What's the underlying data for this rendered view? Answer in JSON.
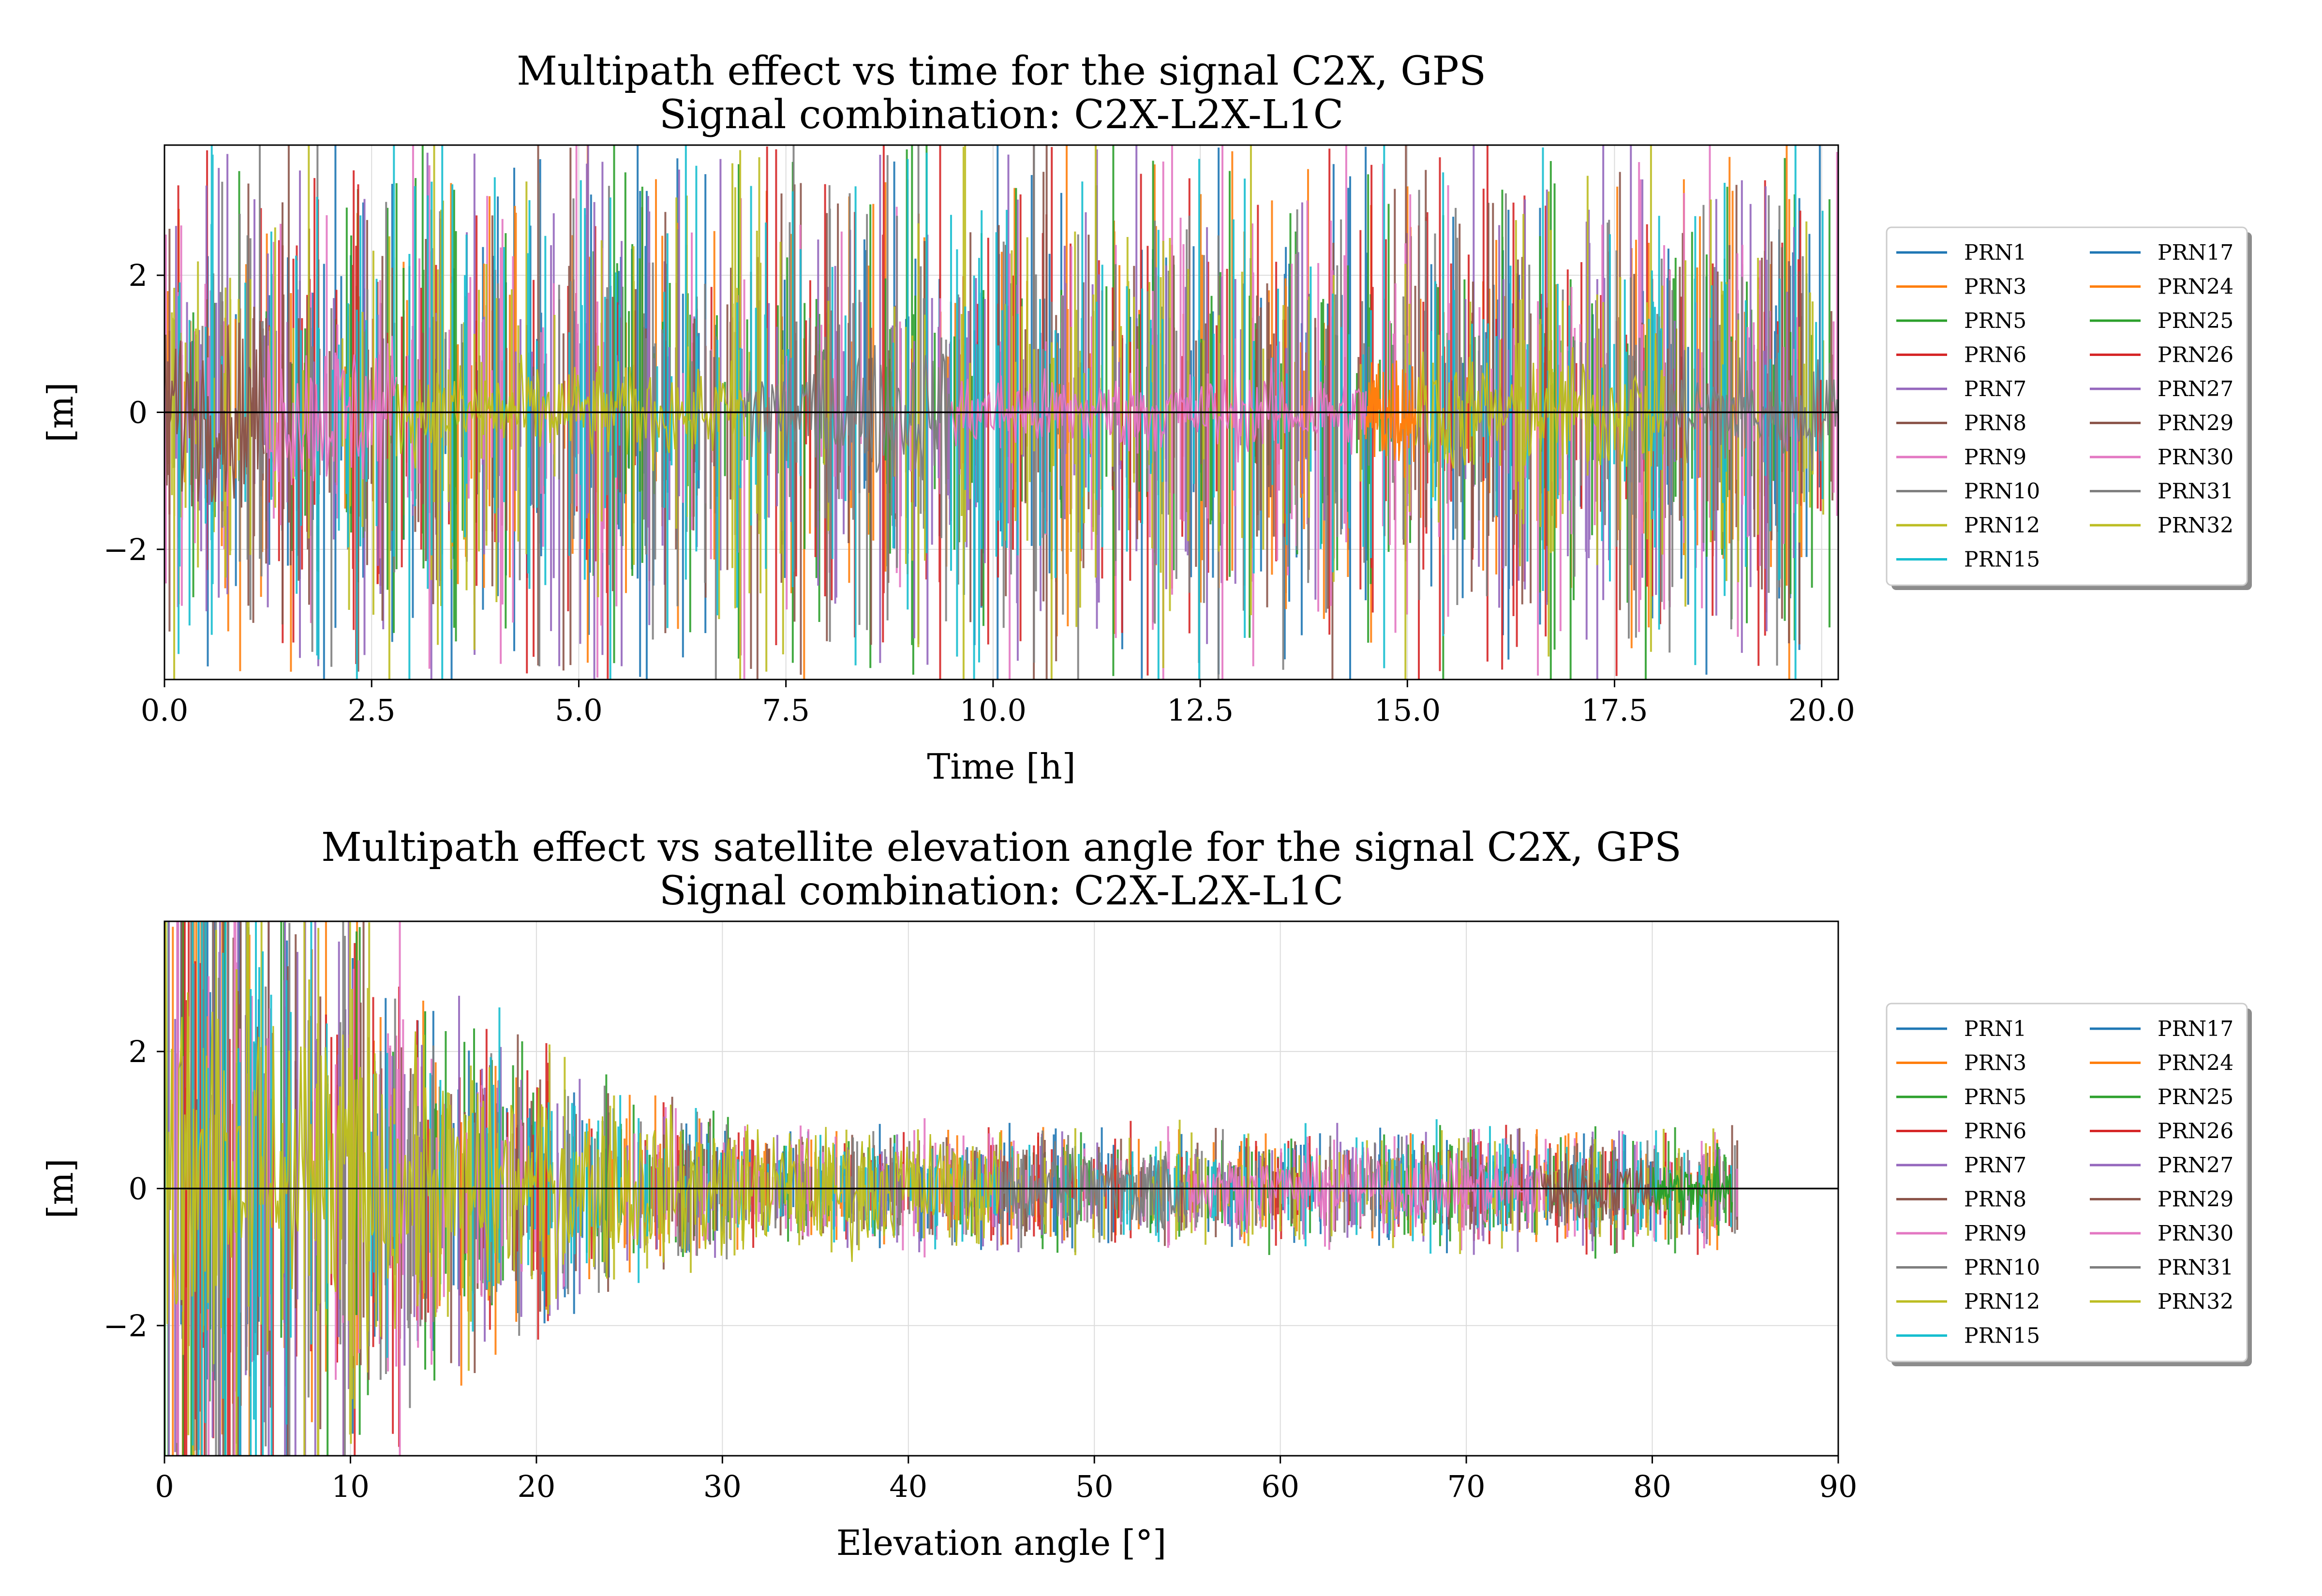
{
  "chart_data": [
    {
      "type": "line",
      "title": "Multipath effect vs time for the signal C2X, GPS",
      "subtitle": "Signal combination: C2X-L2X-L1C",
      "xlabel": "Time [h]",
      "ylabel": "[m]",
      "xlim": [
        0.0,
        20.2
      ],
      "ylim": [
        -3.9,
        3.9
      ],
      "xticks": [
        "0.0",
        "2.5",
        "5.0",
        "7.5",
        "10.0",
        "12.5",
        "15.0",
        "17.5",
        "20.0"
      ],
      "xtick_values": [
        0,
        2.5,
        5,
        7.5,
        10,
        12.5,
        15,
        17.5,
        20
      ],
      "yticks": [
        "−2",
        "0",
        "2"
      ],
      "ytick_values": [
        -2,
        0,
        2
      ],
      "grid": true,
      "zero_line": true,
      "legend_position": "right",
      "legend_columns": 2,
      "legend": [
        "PRN1",
        "PRN3",
        "PRN5",
        "PRN6",
        "PRN7",
        "PRN8",
        "PRN9",
        "PRN10",
        "PRN12",
        "PRN15",
        "PRN17",
        "PRN24",
        "PRN25",
        "PRN26",
        "PRN27",
        "PRN29",
        "PRN30",
        "PRN31",
        "PRN32"
      ],
      "colors": [
        "#1f77b4",
        "#ff7f0e",
        "#2ca02c",
        "#d62728",
        "#9467bd",
        "#8c564b",
        "#e377c2",
        "#7f7f7f",
        "#bcbd22",
        "#17becf",
        "#1f77b4",
        "#ff7f0e",
        "#2ca02c",
        "#d62728",
        "#9467bd",
        "#8c564b",
        "#e377c2",
        "#7f7f7f",
        "#bcbd22"
      ],
      "series": [
        {
          "name": "PRN8",
          "x_range": [
            0.0,
            1.2
          ],
          "amplitude": 1.3
        },
        {
          "name": "PRN9",
          "x_range": [
            1.2,
            2.8
          ],
          "amplitude": 1.2
        },
        {
          "name": "PRN12",
          "x_range": [
            2.8,
            7.0
          ],
          "amplitude": 0.7
        },
        {
          "name": "PRN10",
          "x_range": [
            7.0,
            9.5
          ],
          "amplitude": 1.0
        },
        {
          "name": "PRN30",
          "x_range": [
            9.5,
            14.5
          ],
          "amplitude": 0.6
        },
        {
          "name": "PRN24",
          "x_range": [
            14.5,
            15.1
          ],
          "amplitude": 0.9
        },
        {
          "name": "PRN32",
          "x_range": [
            15.1,
            18.1
          ],
          "amplitude": 0.9
        },
        {
          "name": "PRN31",
          "x_range": [
            18.1,
            20.2
          ],
          "amplitude": 0.8
        }
      ]
    },
    {
      "type": "line",
      "title": "Multipath effect vs satellite elevation angle for the signal C2X, GPS",
      "subtitle": "Signal combination: C2X-L2X-L1C",
      "xlabel": "Elevation angle [°]",
      "ylabel": "[m]",
      "xlim": [
        0,
        90
      ],
      "ylim": [
        -3.9,
        3.9
      ],
      "xticks": [
        "0",
        "10",
        "20",
        "30",
        "40",
        "50",
        "60",
        "70",
        "80",
        "90"
      ],
      "xtick_values": [
        0,
        10,
        20,
        30,
        40,
        50,
        60,
        70,
        80,
        90
      ],
      "yticks": [
        "−2",
        "0",
        "2"
      ],
      "ytick_values": [
        -2,
        0,
        2
      ],
      "grid": true,
      "zero_line": true,
      "legend_position": "right",
      "legend_columns": 2,
      "legend": [
        "PRN1",
        "PRN3",
        "PRN5",
        "PRN6",
        "PRN7",
        "PRN8",
        "PRN9",
        "PRN10",
        "PRN12",
        "PRN15",
        "PRN17",
        "PRN24",
        "PRN25",
        "PRN26",
        "PRN27",
        "PRN29",
        "PRN30",
        "PRN31",
        "PRN32"
      ],
      "colors": [
        "#1f77b4",
        "#ff7f0e",
        "#2ca02c",
        "#d62728",
        "#9467bd",
        "#8c564b",
        "#e377c2",
        "#7f7f7f",
        "#bcbd22",
        "#17becf",
        "#1f77b4",
        "#ff7f0e",
        "#2ca02c",
        "#d62728",
        "#9467bd",
        "#8c564b",
        "#e377c2",
        "#7f7f7f",
        "#bcbd22"
      ],
      "series": [
        {
          "name": "PRN12",
          "x_range": [
            0,
            45
          ],
          "amplitude_start": 3.9,
          "amplitude_end": 0.6
        },
        {
          "name": "PRN10",
          "x_range": [
            45,
            55
          ],
          "amplitude": 0.7
        },
        {
          "name": "PRN30",
          "x_range": [
            55,
            74
          ],
          "amplitude": 0.5
        },
        {
          "name": "PRN29",
          "x_range": [
            74,
            80
          ],
          "amplitude": 0.5
        },
        {
          "name": "PRN25",
          "x_range": [
            80,
            84.3
          ],
          "amplitude": 0.45
        }
      ]
    }
  ]
}
